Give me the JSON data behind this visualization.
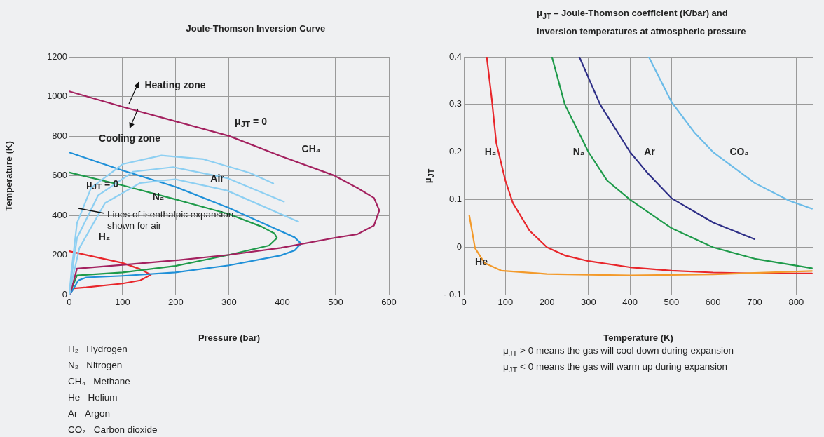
{
  "chart_data": [
    {
      "type": "line",
      "title": "Joule-Thomson Inversion Curve",
      "xlabel": "Pressure (bar)",
      "ylabel": "Temperature (K)",
      "xlim": [
        0,
        600
      ],
      "xticks": [
        0,
        100,
        200,
        300,
        400,
        500,
        600
      ],
      "ylim": [
        0,
        1200
      ],
      "yticks": [
        0,
        200,
        400,
        600,
        800,
        1000,
        1200
      ],
      "grid": true,
      "marker": "none",
      "series": [
        {
          "color": "#8dcff2",
          "x": [
            0,
            4,
            14.5,
            41,
            100,
            173,
            252,
            339,
            383
          ],
          "values": [
            0,
            120,
            363,
            539,
            659,
            703,
            684,
            615,
            562
          ]
        },
        {
          "color": "#8dcff2",
          "x": [
            0,
            4,
            14.5,
            54,
            120,
            195,
            296,
            403
          ],
          "values": [
            0,
            90,
            287,
            501,
            621,
            644,
            589,
            470
          ]
        },
        {
          "color": "#8dcff2",
          "x": [
            0,
            5,
            19,
            67,
            133,
            199,
            296,
            430
          ],
          "values": [
            0,
            70,
            237,
            463,
            564,
            583,
            526,
            369
          ]
        },
        {
          "name": "CH₄",
          "color": "#a3215f",
          "x": [
            0,
            100,
            199,
            300,
            397,
            497,
            541,
            572,
            582,
            572,
            541,
            497,
            397,
            300,
            199,
            100,
            14.5,
            3.5,
            0
          ],
          "values": [
            1026,
            948,
            875,
            801,
            700,
            602,
            539,
            489,
            426,
            350,
            306,
            287,
            237,
            202,
            174,
            151,
            133,
            23,
            0
          ]
        },
        {
          "name": "Air",
          "color": "#1f90d8",
          "x": [
            0,
            100,
            199,
            300,
            383,
            423,
            435,
            423,
            397,
            300,
            199,
            100,
            32,
            17,
            6,
            0
          ],
          "values": [
            718,
            627,
            545,
            438,
            338,
            290,
            259,
            224,
            199,
            149,
            113,
            96,
            88,
            73,
            23,
            0
          ]
        },
        {
          "name": "N₂",
          "color": "#1e9a4a",
          "x": [
            0,
            100,
            199,
            300,
            361,
            385,
            390,
            375,
            300,
            199,
            100,
            14.5,
            6,
            0
          ],
          "values": [
            617,
            552,
            482,
            407,
            344,
            310,
            287,
            249,
            202,
            146,
            113,
            98,
            42,
            0
          ]
        },
        {
          "name": "H₂",
          "color": "#e8262b",
          "x": [
            0,
            100,
            133,
            153,
            133,
            100,
            32,
            8,
            0
          ],
          "values": [
            220,
            161,
            130,
            101,
            73,
            57,
            38,
            33,
            0
          ]
        }
      ],
      "annotations": [
        "Heating zone",
        "Cooling zone",
        "μ$_{JT}$ = 0",
        "μ$_{JT}$ = 0",
        "Lines of isenthalpic expansion,\nshown for air",
        "H₂   Hydrogen",
        "N₂   Nitrogen",
        "CH₄   Methane",
        "He   Helium",
        "Ar   Argon",
        "CO₂   Carbon dioxide"
      ]
    },
    {
      "type": "line",
      "title": "μ$_{JT}$ – Joule-Thomson coefficient (K/bar) and\ninversion temperatures at atmospheric pressure",
      "xlabel": "Temperature (K)",
      "ylabel": "μ$_{JT}$",
      "xlim": [
        0,
        840
      ],
      "xticks": [
        0,
        100,
        200,
        300,
        400,
        500,
        600,
        700,
        800
      ],
      "ylim": [
        -0.1,
        0.4
      ],
      "yticks": [
        {
          "value": -0.1,
          "label": "- 0.1"
        },
        0,
        0.1,
        0.2,
        0.3,
        0.4
      ],
      "grid": true,
      "marker": "none",
      "series": [
        {
          "name": "He",
          "color": "#f39a2b",
          "x": [
            13,
            27,
            50,
            90,
            200,
            400,
            600,
            838
          ],
          "values": [
            0.067,
            -0.002,
            -0.033,
            -0.049,
            -0.056,
            -0.059,
            -0.057,
            -0.05
          ]
        },
        {
          "name": "H₂",
          "color": "#e8262b",
          "x": [
            55,
            67,
            78,
            100,
            118,
            158,
            200,
            243,
            300,
            400,
            500,
            600,
            700,
            838
          ],
          "values": [
            0.4,
            0.313,
            0.219,
            0.14,
            0.093,
            0.035,
            0,
            -0.017,
            -0.029,
            -0.042,
            -0.049,
            -0.053,
            -0.055,
            -0.055
          ]
        },
        {
          "name": "N₂",
          "color": "#1e9a4a",
          "x": [
            212,
            243,
            300,
            345,
            400,
            500,
            600,
            700,
            838
          ],
          "values": [
            0.4,
            0.3,
            0.2,
            0.14,
            0.1,
            0.04,
            0,
            -0.024,
            -0.044
          ]
        },
        {
          "name": "Ar",
          "color": "#2e2f87",
          "x": [
            278,
            328,
            400,
            442,
            500,
            600,
            700
          ],
          "values": [
            0.4,
            0.3,
            0.2,
            0.156,
            0.103,
            0.052,
            0.017
          ]
        },
        {
          "name": "CO₂",
          "color": "#6bbbe8",
          "x": [
            445,
            500,
            556,
            600,
            700,
            783,
            838
          ],
          "values": [
            0.4,
            0.305,
            0.24,
            0.2,
            0.135,
            0.098,
            0.081
          ]
        }
      ],
      "annotations": [
        "μ$_{JT}$ > 0 means the gas will cool down during expansion",
        "μ$_{JT}$ < 0 means the gas will warm up during expansion"
      ]
    }
  ]
}
